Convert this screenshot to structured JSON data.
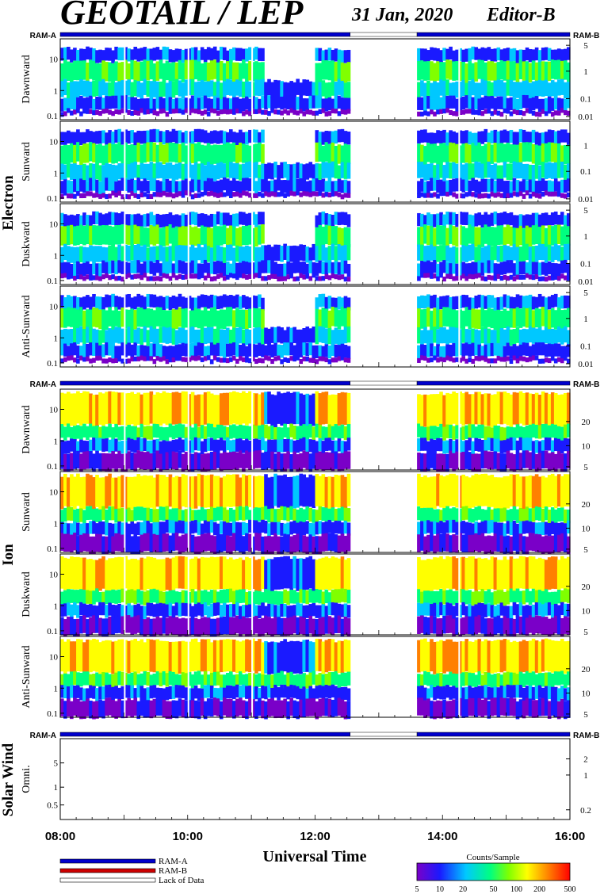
{
  "header": {
    "title": "GEOTAIL / LEP",
    "date": "31 Jan, 2020",
    "editor": "Editor-B"
  },
  "ram_labels": {
    "a": "RAM-A",
    "b": "RAM-B"
  },
  "groups": [
    {
      "label": "Electron"
    },
    {
      "label": "Ion"
    },
    {
      "label": "Solar Wind"
    }
  ],
  "panels": [
    {
      "group": 0,
      "label": "Dawnward",
      "left_ticks": [
        "10",
        "1",
        "0.1"
      ],
      "right_ticks": [
        "5",
        "1",
        "0.1",
        "0.01"
      ]
    },
    {
      "group": 0,
      "label": "Sunward",
      "left_ticks": [
        "10",
        "1",
        "0.1"
      ],
      "right_ticks": [
        "1",
        "0.1",
        "0.01"
      ]
    },
    {
      "group": 0,
      "label": "Duskward",
      "left_ticks": [
        "10",
        "1",
        "0.1"
      ],
      "right_ticks": [
        "5",
        "1",
        "0.1",
        "0.01"
      ]
    },
    {
      "group": 0,
      "label": "Anti-Sunward",
      "left_ticks": [
        "10",
        "1",
        "0.1"
      ],
      "right_ticks": [
        "5",
        "1",
        "0.1",
        "0.01"
      ]
    },
    {
      "group": 1,
      "label": "Dawnward",
      "left_ticks": [
        "10",
        "1",
        "0.1"
      ],
      "right_ticks": [
        "20",
        "10",
        "5"
      ]
    },
    {
      "group": 1,
      "label": "Sunward",
      "left_ticks": [
        "10",
        "1",
        "0.1"
      ],
      "right_ticks": [
        "20",
        "10",
        "5"
      ]
    },
    {
      "group": 1,
      "label": "Duskward",
      "left_ticks": [
        "10",
        "1",
        "0.1"
      ],
      "right_ticks": [
        "20",
        "10",
        "5"
      ]
    },
    {
      "group": 1,
      "label": "Anti-Sunward",
      "left_ticks": [
        "10",
        "1",
        "0.1"
      ],
      "right_ticks": [
        "20",
        "10",
        "5"
      ]
    },
    {
      "group": 2,
      "label": "Omni.",
      "left_ticks": [
        "5",
        "1",
        "0.5"
      ],
      "right_ticks": [
        "2",
        "1",
        "0.2"
      ]
    }
  ],
  "chart_data": {
    "type": "heatmap",
    "title": "GEOTAIL / LEP",
    "xlabel": "Universal Time",
    "x_ticks": [
      "08:00",
      "10:00",
      "12:00",
      "14:00",
      "16:00"
    ],
    "x_range_hours": [
      8,
      16
    ],
    "data_gaps": [
      [
        12.55,
        13.6
      ]
    ],
    "mode_bar": [
      {
        "from": 8.0,
        "to": 12.55,
        "mode": "RAM-A"
      },
      {
        "from": 12.55,
        "to": 13.6,
        "mode": "Lack of Data"
      },
      {
        "from": 13.6,
        "to": 16.0,
        "mode": "RAM-A"
      }
    ],
    "colorbar": {
      "title": "Counts/Sample",
      "ticks": [
        "5",
        "10",
        "20",
        "50",
        "100",
        "200",
        "500"
      ],
      "colors": [
        "#7a00c8",
        "#1a1aff",
        "#00c8ff",
        "#00ff80",
        "#80ff00",
        "#ffff00",
        "#ff8000",
        "#ff0000"
      ]
    },
    "legend": [
      {
        "label": "RAM-A",
        "color": "#0000cc"
      },
      {
        "label": "RAM-B",
        "color": "#cc0000"
      },
      {
        "label": "Lack of Data",
        "color": "#ffffff"
      }
    ]
  }
}
